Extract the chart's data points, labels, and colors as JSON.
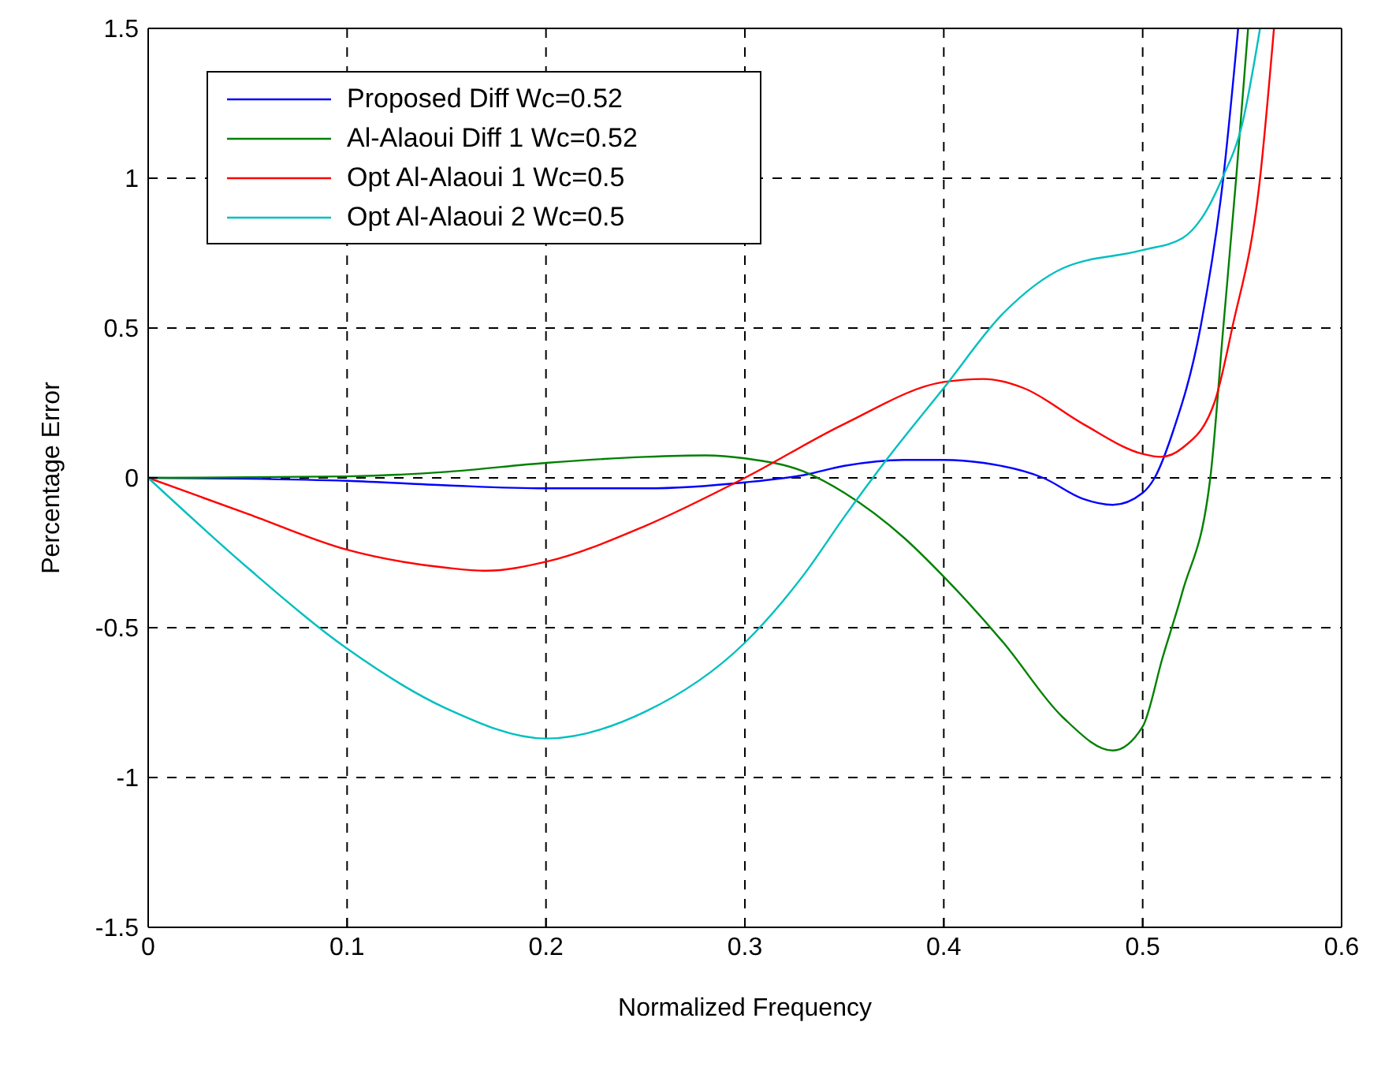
{
  "chart_data": {
    "type": "line",
    "xlabel": "Normalized Frequency",
    "ylabel": "Percentage Error",
    "xlim": [
      0,
      0.6
    ],
    "ylim": [
      -1.5,
      1.5
    ],
    "xticks": [
      0,
      0.1,
      0.2,
      0.3,
      0.4,
      0.5,
      0.6
    ],
    "yticks": [
      -1.5,
      -1,
      -0.5,
      0,
      0.5,
      1,
      1.5
    ],
    "grid": true,
    "legend": "top left",
    "line_style": "solid",
    "marker": "none",
    "series": [
      {
        "name": "Proposed Diff Wc=0.52",
        "color": "#0000ff",
        "x": [
          0,
          0.05,
          0.1,
          0.15,
          0.2,
          0.25,
          0.3,
          0.33,
          0.35,
          0.38,
          0.4,
          0.42,
          0.45,
          0.47,
          0.485,
          0.5,
          0.506,
          0.515,
          0.529,
          0.5405,
          0.548
        ],
        "values": [
          0,
          -0.003,
          -0.01,
          -0.025,
          -0.035,
          -0.035,
          -0.015,
          0.01,
          0.04,
          0.06,
          0.06,
          0.05,
          0,
          -0.07,
          -0.09,
          -0.05,
          0,
          0.15,
          0.5,
          1,
          1.5
        ]
      },
      {
        "name": "Al-Alaoui Diff 1 Wc=0.52",
        "color": "#008000",
        "x": [
          0,
          0.1,
          0.15,
          0.2,
          0.25,
          0.28,
          0.3,
          0.33,
          0.35,
          0.38,
          0.4,
          0.43,
          0.46,
          0.485,
          0.5,
          0.51,
          0.52,
          0.534,
          0.5405,
          0.547,
          0.553
        ],
        "values": [
          0,
          0.005,
          0.02,
          0.05,
          0.07,
          0.075,
          0.065,
          0.02,
          -0.05,
          -0.2,
          -0.33,
          -0.55,
          -0.8,
          -0.91,
          -0.83,
          -0.6,
          -0.38,
          0,
          0.5,
          1,
          1.5
        ]
      },
      {
        "name": "Opt Al-Alaoui 1 Wc=0.5",
        "color": "#ff0000",
        "x": [
          0,
          0.05,
          0.1,
          0.15,
          0.17,
          0.2,
          0.25,
          0.3,
          0.35,
          0.4,
          0.42,
          0.44,
          0.47,
          0.5,
          0.509,
          0.52,
          0.536,
          0.545,
          0.559,
          0.566
        ],
        "values": [
          0,
          -0.12,
          -0.24,
          -0.3,
          -0.31,
          -0.28,
          -0.16,
          0,
          0.18,
          0.32,
          0.33,
          0.3,
          0.18,
          0.08,
          0.07,
          0.1,
          0.25,
          0.5,
          1,
          1.5
        ]
      },
      {
        "name": "Opt Al-Alaoui 2 Wc=0.5",
        "color": "#00bfbf",
        "x": [
          0,
          0.05,
          0.1,
          0.15,
          0.2,
          0.25,
          0.3,
          0.33,
          0.35,
          0.37,
          0.4,
          0.43,
          0.46,
          0.5,
          0.52,
          0.53,
          0.54,
          0.55,
          0.559
        ],
        "values": [
          0,
          -0.3,
          -0.57,
          -0.77,
          -0.87,
          -0.78,
          -0.55,
          -0.32,
          -0.13,
          0.05,
          0.3,
          0.55,
          0.7,
          0.76,
          0.8,
          0.87,
          1,
          1.18,
          1.5
        ]
      }
    ]
  }
}
